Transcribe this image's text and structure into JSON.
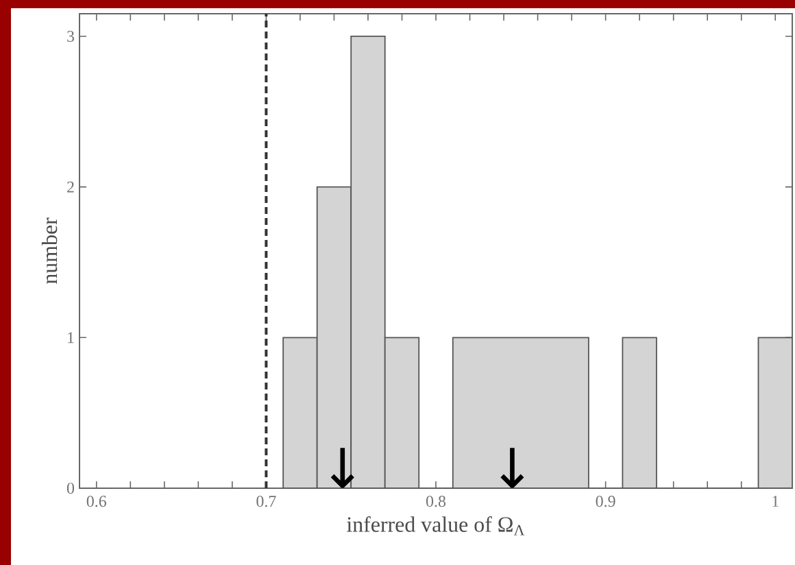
{
  "chart_data": {
    "type": "histogram",
    "xlabel": "inferred value of Ω$_{Λ}$",
    "ylabel": "number",
    "bins": [
      0.71,
      0.73,
      0.75,
      0.77,
      0.79,
      0.81,
      0.89,
      0.91,
      0.93,
      0.99,
      1.01
    ],
    "values": [
      1,
      2,
      3,
      1,
      0,
      1,
      0,
      1,
      0,
      1
    ],
    "color": "#555555",
    "xlim": [
      0.59,
      1.01
    ],
    "ylim": [
      0,
      3.15
    ],
    "xticks": [
      0.6,
      {
        "value": 0.62,
        "label": null
      },
      {
        "value": 0.64,
        "label": null
      },
      {
        "value": 0.66,
        "label": null
      },
      {
        "value": 0.68,
        "label": null
      },
      0.7,
      {
        "value": 0.72,
        "label": null
      },
      {
        "value": 0.74,
        "label": null
      },
      {
        "value": 0.76,
        "label": null
      },
      {
        "value": 0.78,
        "label": null
      },
      0.8,
      {
        "value": 0.82,
        "label": null
      },
      {
        "value": 0.84,
        "label": null
      },
      {
        "value": 0.86,
        "label": null
      },
      {
        "value": 0.88,
        "label": null
      },
      0.9,
      {
        "value": 0.92,
        "label": null
      },
      {
        "value": 0.94,
        "label": null
      },
      {
        "value": 0.96,
        "label": null
      },
      {
        "value": 0.98,
        "label": null
      },
      1
    ],
    "yticks": [
      0,
      1,
      2,
      3
    ],
    "ref_lines": [
      {
        "axis": "x",
        "value": 0.7,
        "line_style": "dashed"
      }
    ],
    "annotations": [
      {
        "text": "↓",
        "x": 0.745,
        "y": 0
      },
      {
        "text": "↓",
        "x": 0.845,
        "y": 0
      }
    ]
  }
}
